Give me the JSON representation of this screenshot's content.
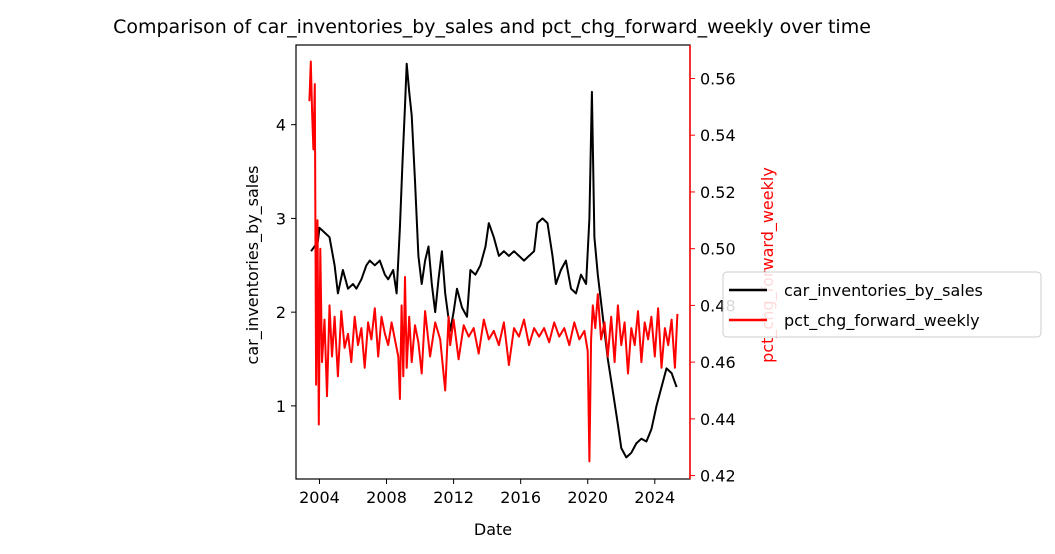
{
  "chart_data": {
    "type": "line",
    "title": "Comparison of car_inventories_by_sales and pct_chg_forward_weekly over time",
    "xlabel": "Date",
    "ylabel_left": "car_inventories_by_sales",
    "ylabel_right": "pct_chg_forward_weekly",
    "xlim": [
      2002.6,
      2026.1
    ],
    "ylim_left": [
      0.22,
      4.85
    ],
    "ylim_right": [
      0.4188,
      0.5718
    ],
    "x_ticks": [
      2004,
      2008,
      2012,
      2016,
      2020,
      2024
    ],
    "x_tick_labels": [
      "2004",
      "2008",
      "2012",
      "2016",
      "2020",
      "2024"
    ],
    "y_left_ticks": [
      1,
      2,
      3,
      4
    ],
    "y_left_tick_labels": [
      "1",
      "2",
      "3",
      "4"
    ],
    "y_right_ticks": [
      0.42,
      0.44,
      0.46,
      0.48,
      0.5,
      0.52,
      0.54,
      0.56
    ],
    "y_right_tick_labels": [
      "0.42",
      "0.44",
      "0.46",
      "0.48",
      "0.50",
      "0.52",
      "0.54",
      "0.56"
    ],
    "grid": false,
    "legend_position": "center-right, outside",
    "series": [
      {
        "name": "car_inventories_by_sales",
        "axis": "left",
        "color": "#000000",
        "x": [
          2003.5,
          2003.9,
          2004.0,
          2004.3,
          2004.6,
          2004.9,
          2005.1,
          2005.4,
          2005.7,
          2006.0,
          2006.2,
          2006.5,
          2006.8,
          2007.0,
          2007.3,
          2007.6,
          2007.9,
          2008.1,
          2008.4,
          2008.6,
          2008.8,
          2008.95,
          2009.1,
          2009.2,
          2009.35,
          2009.5,
          2009.7,
          2009.9,
          2010.1,
          2010.3,
          2010.5,
          2010.7,
          2010.9,
          2011.1,
          2011.3,
          2011.5,
          2011.8,
          2012.0,
          2012.2,
          2012.5,
          2012.8,
          2013.0,
          2013.3,
          2013.6,
          2013.9,
          2014.1,
          2014.4,
          2014.7,
          2015.0,
          2015.3,
          2015.6,
          2015.9,
          2016.2,
          2016.5,
          2016.8,
          2017.0,
          2017.3,
          2017.6,
          2017.9,
          2018.1,
          2018.4,
          2018.7,
          2019.0,
          2019.3,
          2019.6,
          2019.9,
          2020.1,
          2020.25,
          2020.4,
          2020.6,
          2020.9,
          2021.2,
          2021.5,
          2021.8,
          2022.0,
          2022.3,
          2022.6,
          2022.9,
          2023.2,
          2023.5,
          2023.8,
          2024.1,
          2024.4,
          2024.7,
          2025.0,
          2025.3
        ],
        "values": [
          2.65,
          2.75,
          2.9,
          2.85,
          2.8,
          2.5,
          2.2,
          2.45,
          2.25,
          2.3,
          2.25,
          2.35,
          2.5,
          2.55,
          2.5,
          2.55,
          2.4,
          2.35,
          2.45,
          2.2,
          2.9,
          3.6,
          4.2,
          4.65,
          4.35,
          4.1,
          3.4,
          2.6,
          2.3,
          2.55,
          2.7,
          2.3,
          2.0,
          2.35,
          2.65,
          2.2,
          1.8,
          2.0,
          2.25,
          2.05,
          1.95,
          2.45,
          2.4,
          2.5,
          2.7,
          2.95,
          2.8,
          2.6,
          2.65,
          2.6,
          2.65,
          2.6,
          2.55,
          2.6,
          2.65,
          2.95,
          3.0,
          2.95,
          2.6,
          2.3,
          2.45,
          2.55,
          2.25,
          2.2,
          2.4,
          2.3,
          3.0,
          4.35,
          2.8,
          2.4,
          1.95,
          1.5,
          1.15,
          0.8,
          0.55,
          0.45,
          0.5,
          0.6,
          0.65,
          0.62,
          0.75,
          1.0,
          1.2,
          1.4,
          1.35,
          1.2
        ]
      },
      {
        "name": "pct_chg_forward_weekly",
        "axis": "right",
        "color": "#ff0000",
        "x": [
          2003.4,
          2003.48,
          2003.56,
          2003.64,
          2003.72,
          2003.8,
          2003.88,
          2003.96,
          2004.05,
          2004.15,
          2004.3,
          2004.45,
          2004.6,
          2004.75,
          2004.9,
          2005.1,
          2005.3,
          2005.5,
          2005.7,
          2005.9,
          2006.1,
          2006.3,
          2006.5,
          2006.7,
          2006.9,
          2007.1,
          2007.3,
          2007.5,
          2007.7,
          2007.9,
          2008.1,
          2008.3,
          2008.5,
          2008.7,
          2008.8,
          2008.9,
          2009.0,
          2009.1,
          2009.2,
          2009.35,
          2009.5,
          2009.7,
          2009.9,
          2010.1,
          2010.3,
          2010.6,
          2010.9,
          2011.2,
          2011.5,
          2011.7,
          2011.8,
          2012.0,
          2012.3,
          2012.6,
          2012.9,
          2013.2,
          2013.5,
          2013.8,
          2014.1,
          2014.4,
          2014.7,
          2015.0,
          2015.3,
          2015.6,
          2015.9,
          2016.2,
          2016.5,
          2016.8,
          2017.1,
          2017.4,
          2017.7,
          2018.0,
          2018.3,
          2018.6,
          2018.9,
          2019.2,
          2019.5,
          2019.8,
          2020.0,
          2020.1,
          2020.2,
          2020.3,
          2020.45,
          2020.6,
          2020.8,
          2021.0,
          2021.2,
          2021.4,
          2021.6,
          2021.8,
          2022.0,
          2022.2,
          2022.4,
          2022.6,
          2022.8,
          2023.0,
          2023.2,
          2023.4,
          2023.6,
          2023.8,
          2024.0,
          2024.2,
          2024.4,
          2024.6,
          2024.8,
          2025.0,
          2025.2,
          2025.35
        ],
        "values": [
          0.552,
          0.566,
          0.548,
          0.535,
          0.558,
          0.452,
          0.51,
          0.438,
          0.5,
          0.46,
          0.475,
          0.448,
          0.48,
          0.462,
          0.476,
          0.455,
          0.478,
          0.465,
          0.47,
          0.46,
          0.476,
          0.466,
          0.472,
          0.458,
          0.474,
          0.468,
          0.479,
          0.462,
          0.476,
          0.47,
          0.466,
          0.474,
          0.468,
          0.462,
          0.447,
          0.48,
          0.455,
          0.49,
          0.458,
          0.476,
          0.46,
          0.473,
          0.467,
          0.456,
          0.478,
          0.462,
          0.474,
          0.468,
          0.45,
          0.476,
          0.466,
          0.475,
          0.461,
          0.473,
          0.469,
          0.472,
          0.463,
          0.475,
          0.468,
          0.471,
          0.466,
          0.474,
          0.459,
          0.472,
          0.469,
          0.475,
          0.466,
          0.472,
          0.469,
          0.472,
          0.467,
          0.474,
          0.469,
          0.472,
          0.466,
          0.474,
          0.468,
          0.471,
          0.464,
          0.425,
          0.468,
          0.48,
          0.472,
          0.484,
          0.468,
          0.474,
          0.462,
          0.476,
          0.46,
          0.48,
          0.466,
          0.474,
          0.456,
          0.472,
          0.466,
          0.478,
          0.46,
          0.474,
          0.468,
          0.476,
          0.462,
          0.479,
          0.458,
          0.472,
          0.466,
          0.475,
          0.458,
          0.477
        ]
      }
    ]
  }
}
